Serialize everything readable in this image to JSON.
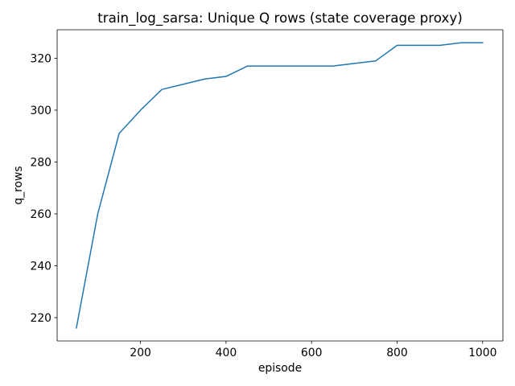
{
  "chart_data": {
    "type": "line",
    "title": "train_log_sarsa: Unique Q rows (state coverage proxy)",
    "xlabel": "episode",
    "ylabel": "q_rows",
    "xlim": [
      5,
      1047.5
    ],
    "ylim": [
      211,
      331
    ],
    "xticks": [
      200,
      400,
      600,
      800,
      1000
    ],
    "yticks": [
      220,
      240,
      260,
      280,
      300,
      320
    ],
    "grid": false,
    "legend": "none",
    "line_color": "#1f77b4",
    "series": [
      {
        "x": [
          50,
          100,
          150,
          200,
          250,
          300,
          350,
          400,
          450,
          500,
          550,
          600,
          650,
          700,
          750,
          800,
          850,
          900,
          950,
          1000
        ],
        "values": [
          216,
          260,
          291,
          300,
          308,
          310,
          312,
          313,
          317,
          317,
          317,
          317,
          317,
          318,
          319,
          325,
          325,
          325,
          326,
          326
        ]
      }
    ]
  }
}
